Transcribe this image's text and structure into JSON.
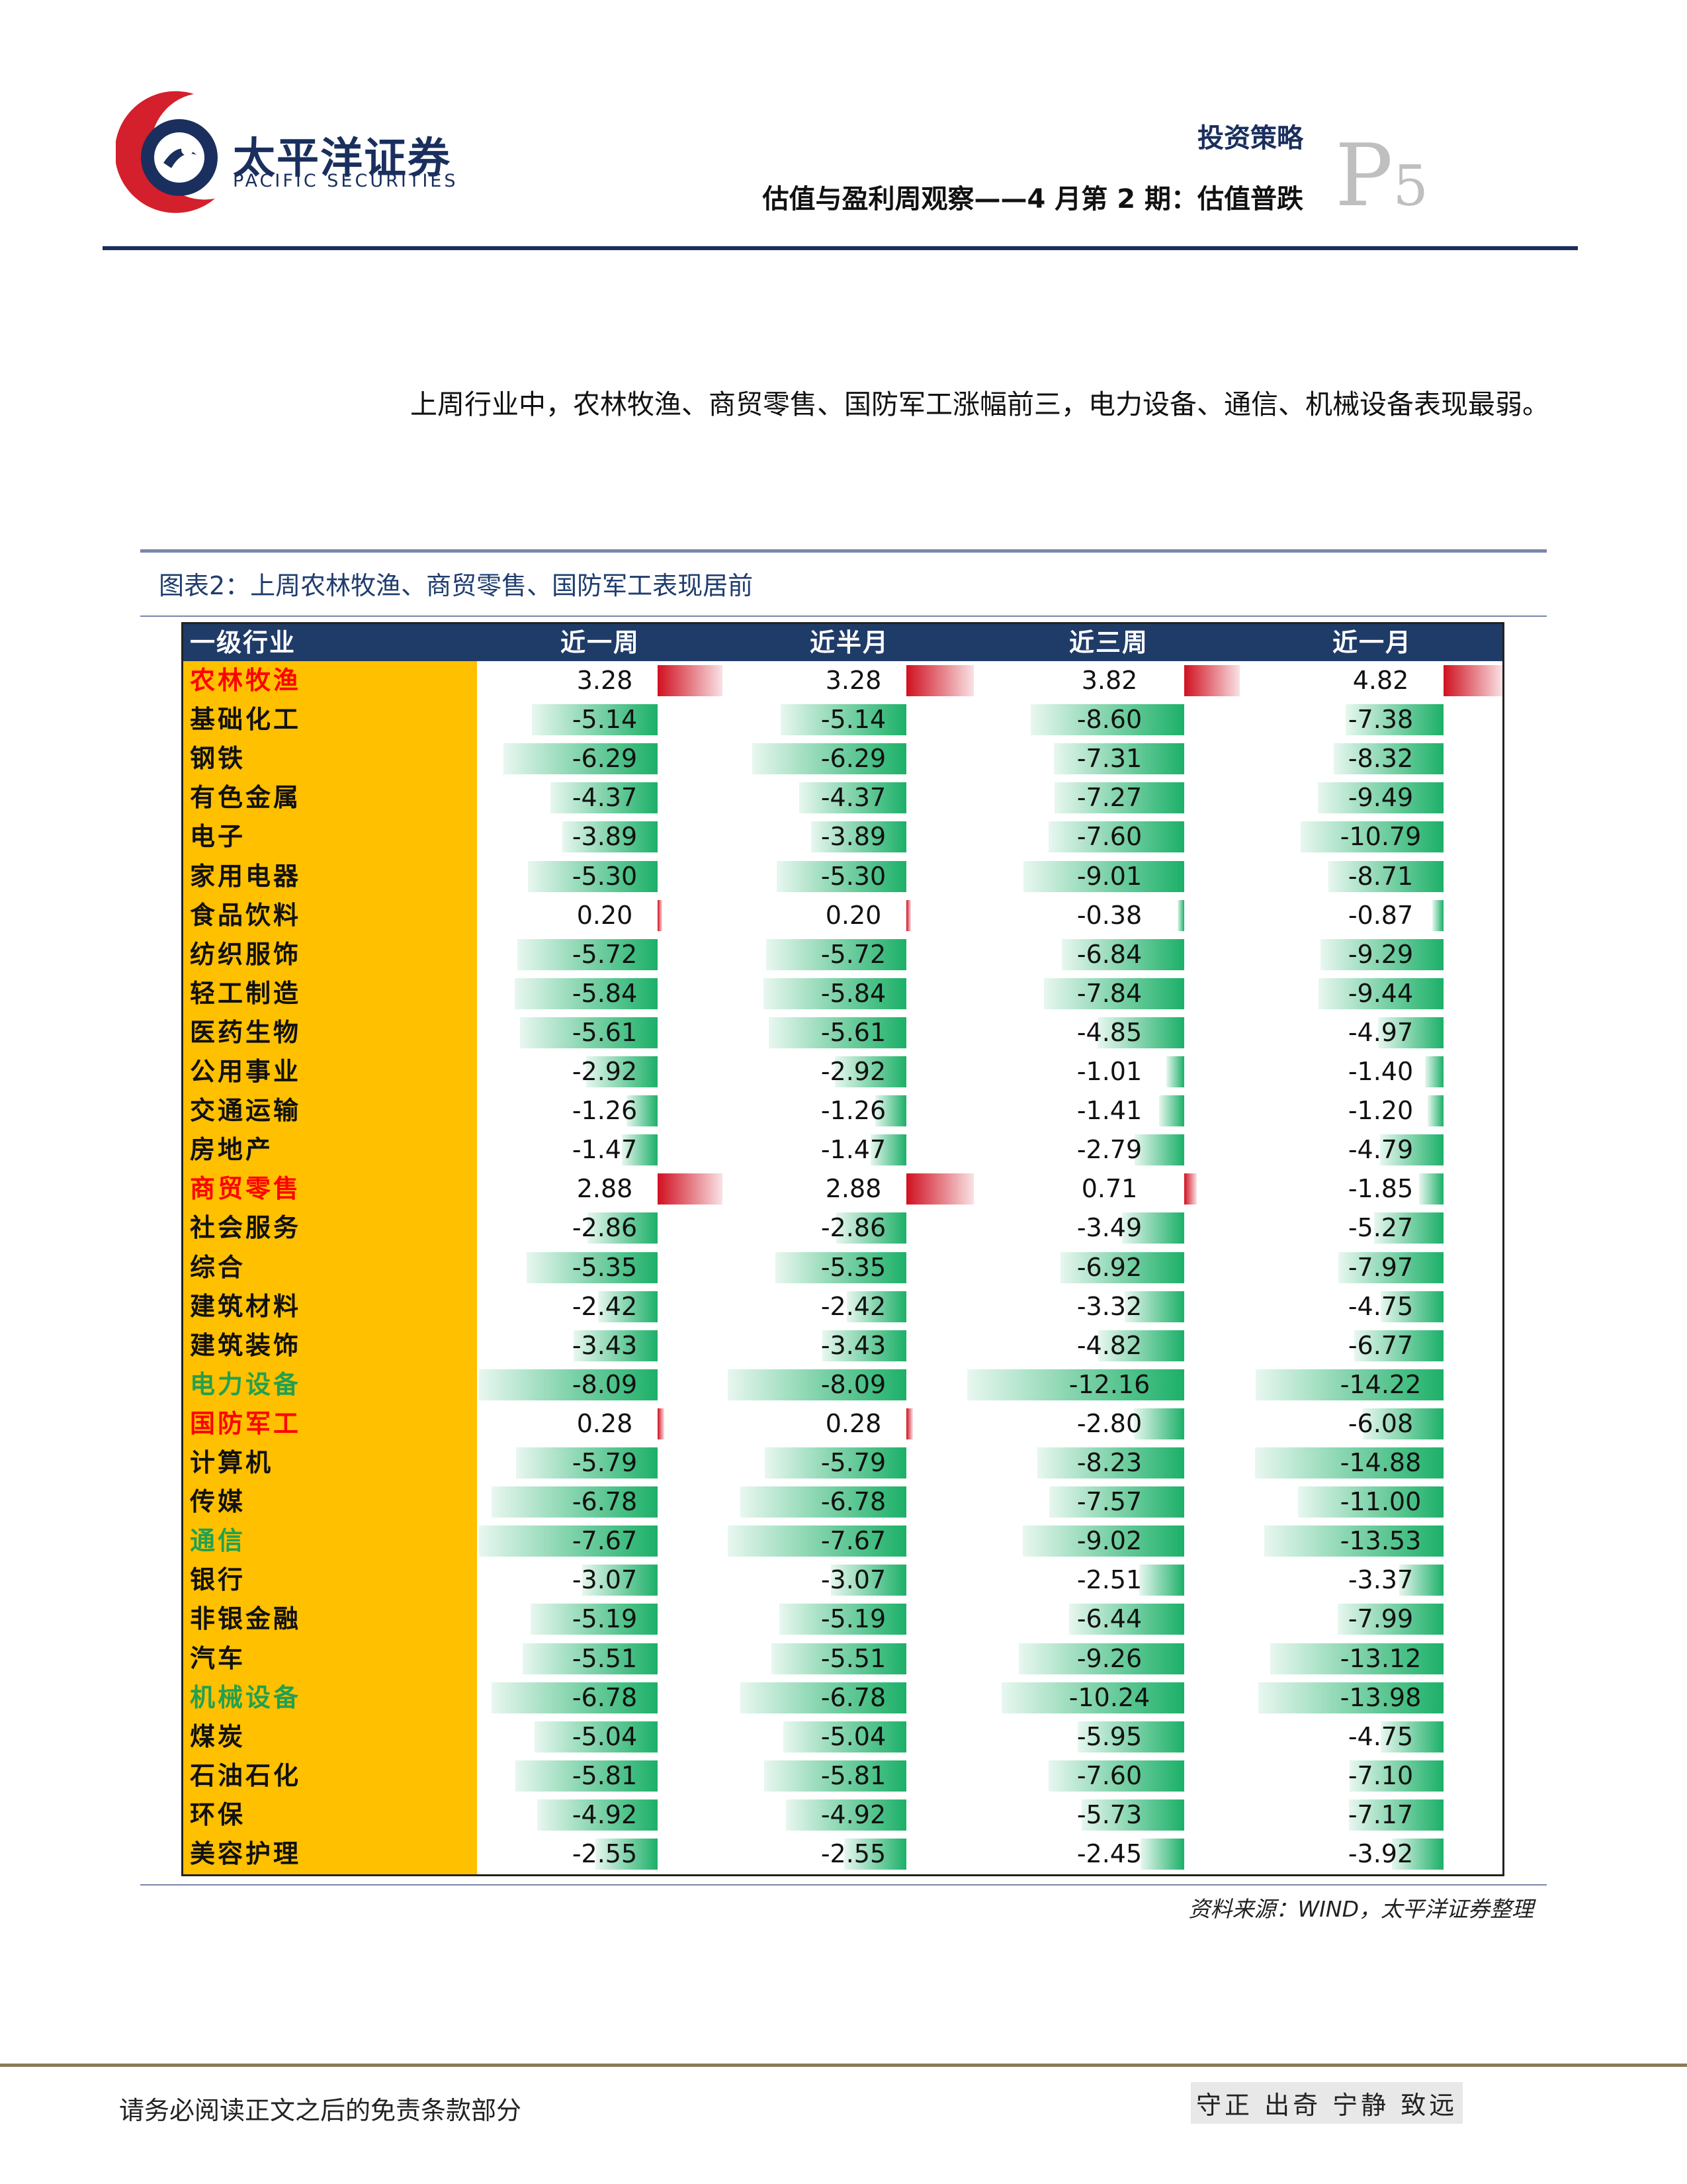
{
  "header": {
    "brand_cn": "太平洋证券",
    "brand_en": "PACIFIC SECURITIES",
    "section": "投资策略",
    "report_title": "估值与盈利周观察——4 月第 2 期：估值普跌",
    "page_letter": "P",
    "page_number": "5",
    "colors": {
      "navy": "#1a2f5e",
      "red": "#d41f2c"
    }
  },
  "paragraph": "上周行业中，农林牧渔、商贸零售、国防军工涨幅前三，电力设备、通信、机械设备表现最弱。",
  "figure": {
    "title": "图表2：上周农林牧渔、商贸零售、国防军工表现居前",
    "source": "资料来源：WIND，太平洋证券整理"
  },
  "chart_data": {
    "type": "table",
    "columns": [
      "一级行业",
      "近一周",
      "近半月",
      "近三周",
      "近一月"
    ],
    "colors": {
      "highlight_top": "#ff0000",
      "highlight_bottom": "#22a050",
      "positive_bar": "#d01020",
      "negative_bar": "#1cb068",
      "industry_fill": "#ffc000",
      "header_fill": "#1f3b68"
    },
    "rows": [
      {
        "name": "农林牧渔",
        "values": [
          3.28,
          3.28,
          3.82,
          4.82
        ],
        "text": [
          "3.28",
          "3.28",
          "3.82",
          "4.82"
        ],
        "highlight": "top"
      },
      {
        "name": "基础化工",
        "values": [
          -5.14,
          -5.14,
          -8.6,
          -7.38
        ],
        "text": [
          "-5.14",
          "-5.14",
          "-8.60",
          "-7.38"
        ],
        "highlight": ""
      },
      {
        "name": "钢铁",
        "values": [
          -6.29,
          -6.29,
          -7.31,
          -8.32
        ],
        "text": [
          "-6.29",
          "-6.29",
          "-7.31",
          "-8.32"
        ],
        "highlight": ""
      },
      {
        "name": "有色金属",
        "values": [
          -4.37,
          -4.37,
          -7.27,
          -9.49
        ],
        "text": [
          "-4.37",
          "-4.37",
          "-7.27",
          "-9.49"
        ],
        "highlight": ""
      },
      {
        "name": "电子",
        "values": [
          -3.89,
          -3.89,
          -7.6,
          -10.79
        ],
        "text": [
          "-3.89",
          "-3.89",
          "-7.60",
          "-10.79"
        ],
        "highlight": ""
      },
      {
        "name": "家用电器",
        "values": [
          -5.3,
          -5.3,
          -9.01,
          -8.71
        ],
        "text": [
          "-5.30",
          "-5.30",
          "-9.01",
          "-8.71"
        ],
        "highlight": ""
      },
      {
        "name": "食品饮料",
        "values": [
          0.2,
          0.2,
          -0.38,
          -0.87
        ],
        "text": [
          "0.20",
          "0.20",
          "-0.38",
          "-0.87"
        ],
        "highlight": ""
      },
      {
        "name": "纺织服饰",
        "values": [
          -5.72,
          -5.72,
          -6.84,
          -9.29
        ],
        "text": [
          "-5.72",
          "-5.72",
          "-6.84",
          "-9.29"
        ],
        "highlight": ""
      },
      {
        "name": "轻工制造",
        "values": [
          -5.84,
          -5.84,
          -7.84,
          -9.44
        ],
        "text": [
          "-5.84",
          "-5.84",
          "-7.84",
          "-9.44"
        ],
        "highlight": ""
      },
      {
        "name": "医药生物",
        "values": [
          -5.61,
          -5.61,
          -4.85,
          -4.97
        ],
        "text": [
          "-5.61",
          "-5.61",
          "-4.85",
          "-4.97"
        ],
        "highlight": ""
      },
      {
        "name": "公用事业",
        "values": [
          -2.92,
          -2.92,
          -1.01,
          -1.4
        ],
        "text": [
          "-2.92",
          "-2.92",
          "-1.01",
          "-1.40"
        ],
        "highlight": ""
      },
      {
        "name": "交通运输",
        "values": [
          -1.26,
          -1.26,
          -1.41,
          -1.2
        ],
        "text": [
          "-1.26",
          "-1.26",
          "-1.41",
          "-1.20"
        ],
        "highlight": ""
      },
      {
        "name": "房地产",
        "values": [
          -1.47,
          -1.47,
          -2.79,
          -4.79
        ],
        "text": [
          "-1.47",
          "-1.47",
          "-2.79",
          "-4.79"
        ],
        "highlight": ""
      },
      {
        "name": "商贸零售",
        "values": [
          2.88,
          2.88,
          0.71,
          -1.85
        ],
        "text": [
          "2.88",
          "2.88",
          "0.71",
          "-1.85"
        ],
        "highlight": "top"
      },
      {
        "name": "社会服务",
        "values": [
          -2.86,
          -2.86,
          -3.49,
          -5.27
        ],
        "text": [
          "-2.86",
          "-2.86",
          "-3.49",
          "-5.27"
        ],
        "highlight": ""
      },
      {
        "name": "综合",
        "values": [
          -5.35,
          -5.35,
          -6.92,
          -7.97
        ],
        "text": [
          "-5.35",
          "-5.35",
          "-6.92",
          "-7.97"
        ],
        "highlight": ""
      },
      {
        "name": "建筑材料",
        "values": [
          -2.42,
          -2.42,
          -3.32,
          -4.75
        ],
        "text": [
          "-2.42",
          "-2.42",
          "-3.32",
          "-4.75"
        ],
        "highlight": ""
      },
      {
        "name": "建筑装饰",
        "values": [
          -3.43,
          -3.43,
          -4.82,
          -6.77
        ],
        "text": [
          "-3.43",
          "-3.43",
          "-4.82",
          "-6.77"
        ],
        "highlight": ""
      },
      {
        "name": "电力设备",
        "values": [
          -8.09,
          -8.09,
          -12.16,
          -14.22
        ],
        "text": [
          "-8.09",
          "-8.09",
          "-12.16",
          "-14.22"
        ],
        "highlight": "bottom"
      },
      {
        "name": "国防军工",
        "values": [
          0.28,
          0.28,
          -2.8,
          -6.08
        ],
        "text": [
          "0.28",
          "0.28",
          "-2.80",
          "-6.08"
        ],
        "highlight": "top"
      },
      {
        "name": "计算机",
        "values": [
          -5.79,
          -5.79,
          -8.23,
          -14.88
        ],
        "text": [
          "-5.79",
          "-5.79",
          "-8.23",
          "-14.88"
        ],
        "highlight": ""
      },
      {
        "name": "传媒",
        "values": [
          -6.78,
          -6.78,
          -7.57,
          -11.0
        ],
        "text": [
          "-6.78",
          "-6.78",
          "-7.57",
          "-11.00"
        ],
        "highlight": ""
      },
      {
        "name": "通信",
        "values": [
          -7.67,
          -7.67,
          -9.02,
          -13.53
        ],
        "text": [
          "-7.67",
          "-7.67",
          "-9.02",
          "-13.53"
        ],
        "highlight": "bottom"
      },
      {
        "name": "银行",
        "values": [
          -3.07,
          -3.07,
          -2.51,
          -3.37
        ],
        "text": [
          "-3.07",
          "-3.07",
          "-2.51",
          "-3.37"
        ],
        "highlight": ""
      },
      {
        "name": "非银金融",
        "values": [
          -5.19,
          -5.19,
          -6.44,
          -7.99
        ],
        "text": [
          "-5.19",
          "-5.19",
          "-6.44",
          "-7.99"
        ],
        "highlight": ""
      },
      {
        "name": "汽车",
        "values": [
          -5.51,
          -5.51,
          -9.26,
          -13.12
        ],
        "text": [
          "-5.51",
          "-5.51",
          "-9.26",
          "-13.12"
        ],
        "highlight": ""
      },
      {
        "name": "机械设备",
        "values": [
          -6.78,
          -6.78,
          -10.24,
          -13.98
        ],
        "text": [
          "-6.78",
          "-6.78",
          "-10.24",
          "-13.98"
        ],
        "highlight": "bottom"
      },
      {
        "name": "煤炭",
        "values": [
          -5.04,
          -5.04,
          -5.95,
          -4.75
        ],
        "text": [
          "-5.04",
          "-5.04",
          "-5.95",
          "-4.75"
        ],
        "highlight": ""
      },
      {
        "name": "石油石化",
        "values": [
          -5.81,
          -5.81,
          -7.6,
          -7.1
        ],
        "text": [
          "-5.81",
          "-5.81",
          "-7.60",
          "-7.10"
        ],
        "highlight": ""
      },
      {
        "name": "环保",
        "values": [
          -4.92,
          -4.92,
          -5.73,
          -7.17
        ],
        "text": [
          "-4.92",
          "-4.92",
          "-5.73",
          "-7.17"
        ],
        "highlight": ""
      },
      {
        "name": "美容护理",
        "values": [
          -2.55,
          -2.55,
          -2.45,
          -3.92
        ],
        "text": [
          "-2.55",
          "-2.55",
          "-2.45",
          "-3.92"
        ],
        "highlight": ""
      }
    ]
  },
  "footer": {
    "disclaimer": "请务必阅读正文之后的免责条款部分",
    "motto": "守正 出奇 宁静 致远"
  }
}
